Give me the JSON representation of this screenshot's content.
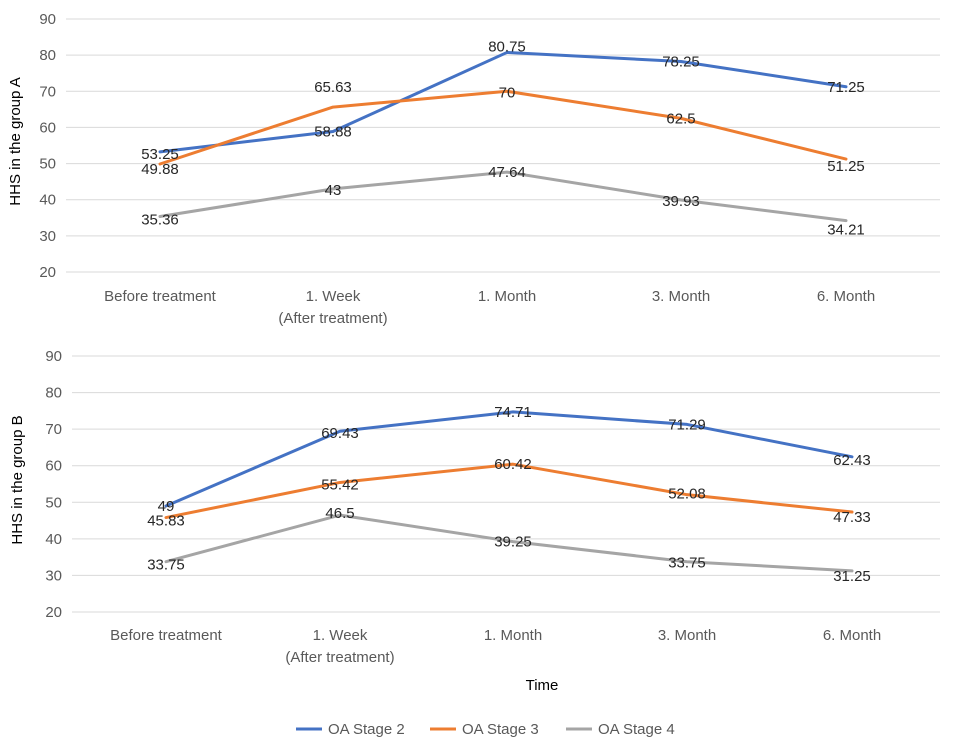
{
  "chart_data": [
    {
      "type": "line",
      "ylabel": "HHS in the group A",
      "xlabel": "",
      "ylim": [
        20,
        90
      ],
      "yticks": [
        20,
        30,
        40,
        50,
        60,
        70,
        80,
        90
      ],
      "grid": true,
      "categories": [
        [
          "Before treatment"
        ],
        [
          "1. Week",
          "(After treatment)"
        ],
        [
          "1. Month"
        ],
        [
          "3. Month"
        ],
        [
          "6. Month"
        ]
      ],
      "series": [
        {
          "name": "OA Stage 2",
          "values": [
            53.25,
            58.88,
            80.75,
            78.25,
            71.25
          ],
          "labels": [
            "53.25",
            "58.88",
            "80.75",
            "78.25",
            "71.25"
          ]
        },
        {
          "name": "OA Stage 3",
          "values": [
            49.88,
            65.63,
            70,
            62.5,
            51.25
          ],
          "labels": [
            "49.88",
            "65.63",
            "70",
            "62.5",
            "51.25"
          ]
        },
        {
          "name": "OA Stage 4",
          "values": [
            35.36,
            43,
            47.64,
            39.93,
            34.21
          ],
          "labels": [
            "35.36",
            "43",
            "47.64",
            "39.93",
            "34.21"
          ]
        }
      ]
    },
    {
      "type": "line",
      "ylabel": "HHS in the  group B",
      "xlabel": "Time",
      "ylim": [
        20,
        90
      ],
      "yticks": [
        20,
        30,
        40,
        50,
        60,
        70,
        80,
        90
      ],
      "grid": true,
      "categories": [
        [
          "Before treatment"
        ],
        [
          "1. Week",
          "(After treatment)"
        ],
        [
          "1. Month"
        ],
        [
          "3. Month"
        ],
        [
          "6. Month"
        ]
      ],
      "series": [
        {
          "name": "OA Stage 2",
          "values": [
            49,
            69.43,
            74.71,
            71.29,
            62.43
          ],
          "labels": [
            "49",
            "69.43",
            "74.71",
            "71.29",
            "62.43"
          ]
        },
        {
          "name": "OA Stage 3",
          "values": [
            45.83,
            55.42,
            60.42,
            52.08,
            47.33
          ],
          "labels": [
            "45.83",
            "55.42",
            "60.42",
            "52.08",
            "47.33"
          ]
        },
        {
          "name": "OA Stage 4",
          "values": [
            33.75,
            46.5,
            39.25,
            33.75,
            31.25
          ],
          "labels": [
            "33.75",
            "46.5",
            "39.25",
            "33.75",
            "31.25"
          ]
        }
      ]
    }
  ],
  "legend": {
    "position": "bottom-center",
    "items": [
      {
        "name": "OA Stage 2",
        "color": "#4472C4"
      },
      {
        "name": "OA Stage 3",
        "color": "#ED7D31"
      },
      {
        "name": "OA Stage 4",
        "color": "#A5A5A5"
      }
    ]
  },
  "colors": {
    "stage2": "#4472C4",
    "stage3": "#ED7D31",
    "stage4": "#A5A5A5",
    "grid": "#D9D9D9"
  }
}
